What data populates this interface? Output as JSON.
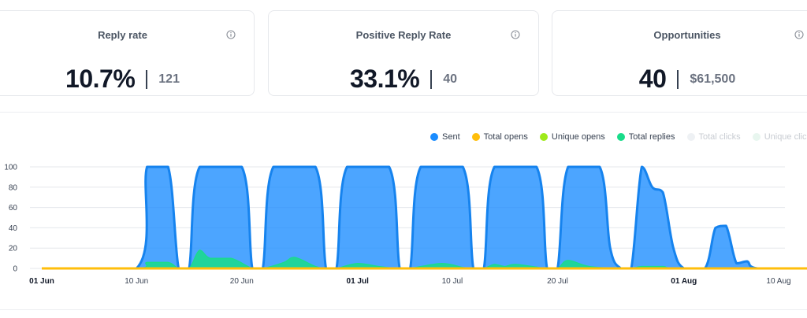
{
  "stats": [
    {
      "title": "Reply rate",
      "value": "10.7%",
      "sub": "121"
    },
    {
      "title": "Positive Reply Rate",
      "value": "33.1%",
      "sub": "40"
    },
    {
      "title": "Opportunities",
      "value": "40",
      "sub": "$61,500"
    }
  ],
  "legend": [
    {
      "label": "Sent",
      "color": "#1a8cff",
      "active": true
    },
    {
      "label": "Total opens",
      "color": "#ffbe0b",
      "active": true
    },
    {
      "label": "Unique opens",
      "color": "#9eea1a",
      "active": true
    },
    {
      "label": "Total replies",
      "color": "#19dc8a",
      "active": true
    },
    {
      "label": "Total clicks",
      "color": "#eef1f4",
      "active": false
    },
    {
      "label": "Unique clicks",
      "color": "#e8f6ef",
      "active": false
    }
  ],
  "chart_data": {
    "type": "area",
    "x": [
      "2024-06-01",
      "2024-06-10",
      "2024-06-20",
      "2024-07-01",
      "2024-07-10",
      "2024-07-20",
      "2024-08-01",
      "2024-08-10"
    ],
    "xticks": [
      "01 Jun",
      "10 Jun",
      "20 Jun",
      "01 Jul",
      "10 Jul",
      "20 Jul",
      "01 Aug",
      "10 Aug"
    ],
    "xticks_bold": [
      true,
      false,
      false,
      true,
      false,
      false,
      true,
      false
    ],
    "yticks": [
      0,
      20,
      40,
      60,
      80,
      100
    ],
    "ylim": [
      0,
      100
    ],
    "grid": true,
    "legend_position": "top-right",
    "series": [
      {
        "name": "Sent",
        "color": "#1a8cff",
        "points": [
          [
            "2024-06-01",
            0
          ],
          [
            "2024-06-10",
            0
          ],
          [
            "2024-06-11",
            100
          ],
          [
            "2024-06-13",
            100
          ],
          [
            "2024-06-14",
            0
          ],
          [
            "2024-06-15",
            0
          ],
          [
            "2024-06-16",
            100
          ],
          [
            "2024-06-20",
            100
          ],
          [
            "2024-06-21",
            0
          ],
          [
            "2024-06-22",
            0
          ],
          [
            "2024-06-23",
            100
          ],
          [
            "2024-06-27",
            100
          ],
          [
            "2024-06-28",
            0
          ],
          [
            "2024-06-29",
            0
          ],
          [
            "2024-06-30",
            100
          ],
          [
            "2024-07-04",
            100
          ],
          [
            "2024-07-05",
            0
          ],
          [
            "2024-07-06",
            0
          ],
          [
            "2024-07-07",
            100
          ],
          [
            "2024-07-11",
            100
          ],
          [
            "2024-07-12",
            0
          ],
          [
            "2024-07-13",
            0
          ],
          [
            "2024-07-14",
            100
          ],
          [
            "2024-07-18",
            100
          ],
          [
            "2024-07-19",
            0
          ],
          [
            "2024-07-20",
            0
          ],
          [
            "2024-07-21",
            100
          ],
          [
            "2024-07-24",
            100
          ],
          [
            "2024-07-25",
            20
          ],
          [
            "2024-07-26",
            0
          ],
          [
            "2024-07-27",
            0
          ],
          [
            "2024-07-28",
            100
          ],
          [
            "2024-07-29",
            80
          ],
          [
            "2024-07-30",
            75
          ],
          [
            "2024-07-31",
            20
          ],
          [
            "2024-08-01",
            0
          ],
          [
            "2024-08-03",
            0
          ],
          [
            "2024-08-04",
            40
          ],
          [
            "2024-08-05",
            42
          ],
          [
            "2024-08-06",
            5
          ],
          [
            "2024-08-07",
            7
          ],
          [
            "2024-08-08",
            0
          ],
          [
            "2024-08-13",
            0
          ]
        ]
      },
      {
        "name": "Total replies",
        "color": "#19dc8a",
        "points": [
          [
            "2024-06-01",
            0
          ],
          [
            "2024-06-10",
            0
          ],
          [
            "2024-06-11",
            6
          ],
          [
            "2024-06-13",
            6
          ],
          [
            "2024-06-14",
            0
          ],
          [
            "2024-06-15",
            0
          ],
          [
            "2024-06-16",
            18
          ],
          [
            "2024-06-17",
            10
          ],
          [
            "2024-06-19",
            10
          ],
          [
            "2024-06-21",
            0
          ],
          [
            "2024-06-22",
            0
          ],
          [
            "2024-06-24",
            6
          ],
          [
            "2024-06-25",
            11
          ],
          [
            "2024-06-27",
            2
          ],
          [
            "2024-06-28",
            0
          ],
          [
            "2024-06-29",
            0
          ],
          [
            "2024-07-01",
            5
          ],
          [
            "2024-07-03",
            2
          ],
          [
            "2024-07-05",
            0
          ],
          [
            "2024-07-06",
            0
          ],
          [
            "2024-07-09",
            5
          ],
          [
            "2024-07-11",
            1
          ],
          [
            "2024-07-12",
            0
          ],
          [
            "2024-07-13",
            0
          ],
          [
            "2024-07-14",
            4
          ],
          [
            "2024-07-15",
            2
          ],
          [
            "2024-07-16",
            4
          ],
          [
            "2024-07-19",
            0
          ],
          [
            "2024-07-20",
            0
          ],
          [
            "2024-07-21",
            8
          ],
          [
            "2024-07-23",
            2
          ],
          [
            "2024-07-26",
            0
          ],
          [
            "2024-07-27",
            0
          ],
          [
            "2024-07-28",
            2
          ],
          [
            "2024-07-30",
            2
          ],
          [
            "2024-08-01",
            0
          ],
          [
            "2024-08-13",
            0
          ]
        ]
      },
      {
        "name": "Total opens",
        "color": "#ffbe0b",
        "points": [
          [
            "2024-06-01",
            0
          ],
          [
            "2024-08-13",
            0
          ]
        ]
      }
    ]
  }
}
